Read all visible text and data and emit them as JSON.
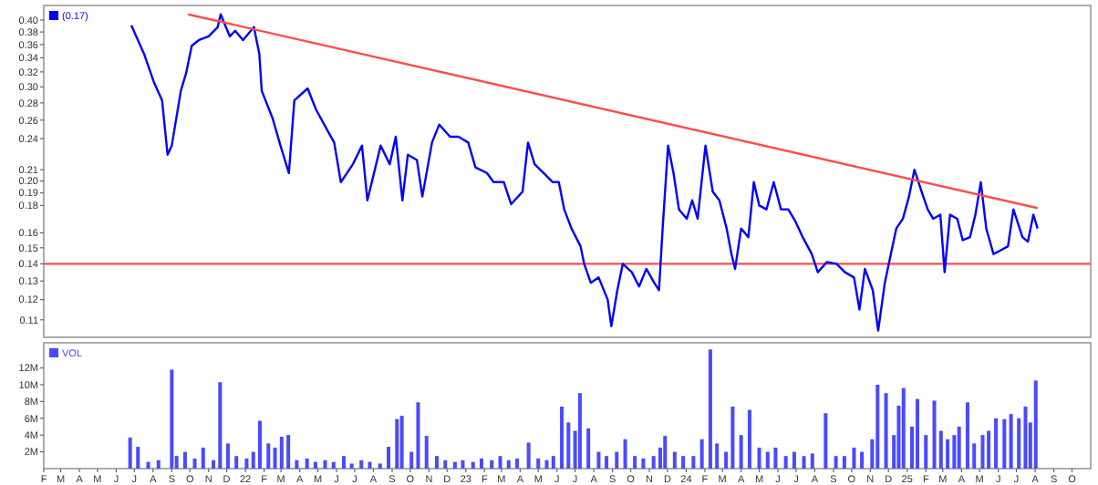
{
  "chart_data": [
    {
      "type": "line",
      "log": true,
      "legend": "top left",
      "tick_labels": "y",
      "xlim": [
        "2021-02-01",
        "2025-11-01"
      ],
      "ylim": [
        0.102,
        0.426
      ],
      "yticks": [
        {
          "value": 0.4,
          "label": "0.40"
        },
        0.38,
        0.36,
        0.34,
        0.32,
        {
          "value": 0.3,
          "label": "0.30"
        },
        0.28,
        0.26,
        0.24,
        0.21,
        {
          "value": 0.2,
          "label": "0.20"
        },
        0.19,
        0.18,
        0.16,
        0.15,
        0.14,
        0.13,
        0.12,
        0.11
      ],
      "x": [
        "2021-06-26",
        "2021-07-17",
        "2021-08-02",
        "2021-08-16",
        "2021-08-25",
        "2021-09-01",
        "2021-09-16",
        "2021-09-25",
        "2021-10-04",
        "2021-10-16",
        "2021-11-01",
        "2021-11-16",
        "2021-11-21",
        "2021-12-06",
        "2021-12-15",
        "2021-12-28",
        "2022-01-15",
        "2022-01-24",
        "2022-01-28",
        "2022-02-15",
        "2022-02-28",
        "2022-03-14",
        "2022-03-23",
        "2022-04-14",
        "2022-04-28",
        "2022-05-14",
        "2022-05-28",
        "2022-06-08",
        "2022-06-28",
        "2022-07-13",
        "2022-07-22",
        "2022-08-13",
        "2022-08-28",
        "2022-09-07",
        "2022-09-18",
        "2022-09-27",
        "2022-10-12",
        "2022-10-21",
        "2022-11-06",
        "2022-11-18",
        "2022-12-06",
        "2022-12-20",
        "2023-01-05",
        "2023-01-17",
        "2023-02-05",
        "2023-02-16",
        "2023-03-05",
        "2023-03-17",
        "2023-04-05",
        "2023-04-14",
        "2023-04-25",
        "2023-05-10",
        "2023-05-25",
        "2023-06-04",
        "2023-06-13",
        "2023-06-25",
        "2023-07-10",
        "2023-07-16",
        "2023-07-27",
        "2023-08-09",
        "2023-08-24",
        "2023-08-30",
        "2023-09-09",
        "2023-09-18",
        "2023-10-03",
        "2023-10-15",
        "2023-10-27",
        "2023-11-09",
        "2023-11-17",
        "2023-11-23",
        "2023-12-02",
        "2023-12-11",
        "2023-12-20",
        "2024-01-02",
        "2024-01-11",
        "2024-01-20",
        "2024-02-02",
        "2024-02-14",
        "2024-02-25",
        "2024-03-08",
        "2024-03-16",
        "2024-03-22",
        "2024-04-01",
        "2024-04-13",
        "2024-04-22",
        "2024-05-01",
        "2024-05-13",
        "2024-05-25",
        "2024-06-06",
        "2024-06-18",
        "2024-06-30",
        "2024-07-12",
        "2024-07-27",
        "2024-08-06",
        "2024-08-21",
        "2024-09-06",
        "2024-09-20",
        "2024-10-05",
        "2024-10-14",
        "2024-10-23",
        "2024-11-05",
        "2024-11-14",
        "2024-11-25",
        "2024-12-05",
        "2024-12-14",
        "2024-12-25",
        "2025-01-04",
        "2025-01-13",
        "2025-01-25",
        "2025-02-04",
        "2025-02-13",
        "2025-02-25",
        "2025-03-04",
        "2025-03-13",
        "2025-03-25",
        "2025-04-03",
        "2025-04-15",
        "2025-04-24",
        "2025-05-03",
        "2025-05-12",
        "2025-05-24",
        "2025-06-03",
        "2025-06-17",
        "2025-06-26",
        "2025-07-11",
        "2025-07-20",
        "2025-07-29",
        "2025-08-05"
      ],
      "series": [
        {
          "name": "(0.17)",
          "color": "#0000ff",
          "values": [
            0.391,
            0.346,
            0.307,
            0.283,
            0.224,
            0.233,
            0.295,
            0.319,
            0.358,
            0.367,
            0.373,
            0.388,
            0.41,
            0.373,
            0.382,
            0.367,
            0.388,
            0.346,
            0.295,
            0.262,
            0.233,
            0.207,
            0.283,
            0.298,
            0.272,
            0.252,
            0.236,
            0.199,
            0.215,
            0.233,
            0.184,
            0.233,
            0.215,
            0.242,
            0.184,
            0.224,
            0.219,
            0.187,
            0.236,
            0.255,
            0.242,
            0.242,
            0.236,
            0.212,
            0.207,
            0.199,
            0.199,
            0.181,
            0.191,
            0.236,
            0.215,
            0.207,
            0.199,
            0.199,
            0.177,
            0.163,
            0.151,
            0.14,
            0.129,
            0.132,
            0.12,
            0.107,
            0.125,
            0.14,
            0.135,
            0.127,
            0.137,
            0.129,
            0.125,
            0.163,
            0.233,
            0.207,
            0.177,
            0.17,
            0.184,
            0.17,
            0.233,
            0.191,
            0.184,
            0.163,
            0.146,
            0.137,
            0.163,
            0.157,
            0.199,
            0.18,
            0.177,
            0.199,
            0.177,
            0.177,
            0.168,
            0.157,
            0.146,
            0.135,
            0.141,
            0.14,
            0.135,
            0.132,
            0.115,
            0.137,
            0.125,
            0.105,
            0.129,
            0.146,
            0.163,
            0.17,
            0.187,
            0.21,
            0.191,
            0.177,
            0.17,
            0.173,
            0.135,
            0.173,
            0.17,
            0.155,
            0.157,
            0.173,
            0.199,
            0.163,
            0.146,
            0.148,
            0.151,
            0.177,
            0.157,
            0.154,
            0.173,
            0.163
          ]
        },
        {
          "type": "line",
          "color": "#ff4c4c",
          "x": [
            "2021-09-28",
            "2025-08-05"
          ],
          "values": [
            0.41,
            0.178
          ]
        }
      ],
      "ref_lines": [
        {
          "axis": "y",
          "value": 0.14,
          "color": "#ff4c4c"
        }
      ]
    },
    {
      "type": "bar",
      "legend": "top left",
      "xlim": [
        "2021-02-01",
        "2025-11-01"
      ],
      "ylim": [
        0,
        15
      ],
      "yticks": [
        {
          "value": 2,
          "label": "2M"
        },
        {
          "value": 4,
          "label": "4M"
        },
        {
          "value": 6,
          "label": "6M"
        },
        {
          "value": 8,
          "label": "8M"
        },
        {
          "value": 10,
          "label": "10M"
        },
        {
          "value": 12,
          "label": "12M"
        }
      ],
      "xticks": [
        {
          "value": "2021-02",
          "label": "F"
        },
        {
          "value": "2021-03",
          "label": "M"
        },
        {
          "value": "2021-04",
          "label": "A"
        },
        {
          "value": "2021-05",
          "label": "M"
        },
        {
          "value": "2021-06",
          "label": "J"
        },
        {
          "value": "2021-07",
          "label": "J"
        },
        {
          "value": "2021-08",
          "label": "A"
        },
        {
          "value": "2021-09",
          "label": "S"
        },
        {
          "value": "2021-10",
          "label": "O"
        },
        {
          "value": "2021-11",
          "label": "N"
        },
        {
          "value": "2021-12",
          "label": "D"
        },
        {
          "value": "2022-01",
          "label": "22"
        },
        {
          "value": "2022-02",
          "label": "F"
        },
        {
          "value": "2022-03",
          "label": "M"
        },
        {
          "value": "2022-04",
          "label": "A"
        },
        {
          "value": "2022-05",
          "label": "M"
        },
        {
          "value": "2022-06",
          "label": "J"
        },
        {
          "value": "2022-07",
          "label": "J"
        },
        {
          "value": "2022-08",
          "label": "A"
        },
        {
          "value": "2022-09",
          "label": "S"
        },
        {
          "value": "2022-10",
          "label": "O"
        },
        {
          "value": "2022-11",
          "label": "N"
        },
        {
          "value": "2022-12",
          "label": "D"
        },
        {
          "value": "2023-01",
          "label": "23"
        },
        {
          "value": "2023-02",
          "label": "F"
        },
        {
          "value": "2023-03",
          "label": "M"
        },
        {
          "value": "2023-04",
          "label": "A"
        },
        {
          "value": "2023-05",
          "label": "M"
        },
        {
          "value": "2023-06",
          "label": "J"
        },
        {
          "value": "2023-07",
          "label": "J"
        },
        {
          "value": "2023-08",
          "label": "A"
        },
        {
          "value": "2023-09",
          "label": "S"
        },
        {
          "value": "2023-10",
          "label": "O"
        },
        {
          "value": "2023-11",
          "label": "N"
        },
        {
          "value": "2023-12",
          "label": "D"
        },
        {
          "value": "2024-01",
          "label": "24"
        },
        {
          "value": "2024-02",
          "label": "F"
        },
        {
          "value": "2024-03",
          "label": "M"
        },
        {
          "value": "2024-04",
          "label": "A"
        },
        {
          "value": "2024-05",
          "label": "M"
        },
        {
          "value": "2024-06",
          "label": "J"
        },
        {
          "value": "2024-07",
          "label": "J"
        },
        {
          "value": "2024-08",
          "label": "A"
        },
        {
          "value": "2024-09",
          "label": "S"
        },
        {
          "value": "2024-10",
          "label": "O"
        },
        {
          "value": "2024-11",
          "label": "N"
        },
        {
          "value": "2024-12",
          "label": "D"
        },
        {
          "value": "2025-01",
          "label": "25"
        },
        {
          "value": "2025-02",
          "label": "F"
        },
        {
          "value": "2025-03",
          "label": "M"
        },
        {
          "value": "2025-04",
          "label": "A"
        },
        {
          "value": "2025-05",
          "label": "M"
        },
        {
          "value": "2025-06",
          "label": "J"
        },
        {
          "value": "2025-07",
          "label": "J"
        },
        {
          "value": "2025-08",
          "label": "A"
        },
        {
          "value": "2025-09",
          "label": "S"
        },
        {
          "value": "2025-10",
          "label": "O"
        }
      ],
      "x": [
        "2021-06-24",
        "2021-07-07",
        "2021-07-24",
        "2021-08-10",
        "2021-09-01",
        "2021-09-09",
        "2021-09-23",
        "2021-10-09",
        "2021-10-23",
        "2021-11-09",
        "2021-11-20",
        "2021-12-03",
        "2021-12-17",
        "2022-01-03",
        "2022-01-14",
        "2022-01-25",
        "2022-02-08",
        "2022-02-19",
        "2022-03-02",
        "2022-03-13",
        "2022-03-27",
        "2022-04-13",
        "2022-04-27",
        "2022-05-13",
        "2022-05-27",
        "2022-06-13",
        "2022-06-26",
        "2022-07-12",
        "2022-07-26",
        "2022-08-12",
        "2022-08-26",
        "2022-09-09",
        "2022-09-17",
        "2022-10-03",
        "2022-10-14",
        "2022-10-28",
        "2022-11-14",
        "2022-11-28",
        "2022-12-14",
        "2022-12-27",
        "2023-01-13",
        "2023-01-27",
        "2023-02-13",
        "2023-02-27",
        "2023-03-13",
        "2023-03-27",
        "2023-04-15",
        "2023-05-01",
        "2023-05-15",
        "2023-05-26",
        "2023-06-09",
        "2023-06-20",
        "2023-07-01",
        "2023-07-09",
        "2023-07-23",
        "2023-08-09",
        "2023-08-22",
        "2023-09-08",
        "2023-09-22",
        "2023-10-08",
        "2023-10-22",
        "2023-11-08",
        "2023-11-19",
        "2023-11-27",
        "2023-12-13",
        "2023-12-27",
        "2024-01-13",
        "2024-01-27",
        "2024-02-10",
        "2024-02-21",
        "2024-03-07",
        "2024-03-18",
        "2024-04-01",
        "2024-04-15",
        "2024-05-01",
        "2024-05-15",
        "2024-05-28",
        "2024-06-14",
        "2024-06-28",
        "2024-07-14",
        "2024-07-28",
        "2024-08-19",
        "2024-09-05",
        "2024-09-19",
        "2024-10-05",
        "2024-10-18",
        "2024-11-04",
        "2024-11-13",
        "2024-11-27",
        "2024-12-10",
        "2024-12-18",
        "2024-12-26",
        "2025-01-09",
        "2025-01-18",
        "2025-02-01",
        "2025-02-15",
        "2025-02-26",
        "2025-03-09",
        "2025-03-20",
        "2025-03-28",
        "2025-04-11",
        "2025-04-22",
        "2025-05-06",
        "2025-05-16",
        "2025-05-28",
        "2025-06-11",
        "2025-06-22",
        "2025-07-05",
        "2025-07-16",
        "2025-07-24",
        "2025-08-02"
      ],
      "series": [
        {
          "name": "VOL",
          "color": "#4a4aff",
          "values": [
            3.7,
            2.6,
            0.8,
            1.0,
            11.8,
            1.5,
            2.0,
            1.2,
            2.5,
            1.0,
            10.3,
            3.0,
            1.5,
            1.2,
            2.0,
            5.7,
            3.0,
            2.5,
            3.8,
            4.0,
            1.0,
            1.2,
            0.8,
            1.0,
            0.8,
            1.5,
            0.6,
            1.0,
            0.8,
            0.6,
            2.6,
            5.9,
            6.3,
            2.0,
            7.9,
            3.9,
            1.5,
            1.0,
            0.8,
            1.0,
            0.8,
            1.2,
            1.0,
            1.5,
            1.0,
            1.2,
            3.1,
            1.2,
            1.0,
            1.5,
            7.4,
            5.5,
            4.5,
            9.0,
            4.8,
            2.0,
            1.5,
            2.0,
            3.5,
            1.5,
            1.2,
            1.5,
            2.5,
            3.9,
            2.0,
            1.5,
            1.5,
            3.5,
            14.2,
            3.0,
            2.0,
            7.4,
            4.0,
            7.0,
            2.5,
            2.0,
            2.5,
            1.5,
            2.0,
            1.5,
            1.8,
            6.6,
            1.5,
            1.5,
            2.5,
            2.0,
            3.5,
            10.0,
            9.0,
            4.0,
            7.5,
            9.6,
            5.0,
            8.3,
            4.0,
            8.1,
            4.5,
            3.5,
            4.0,
            5.0,
            7.9,
            3.0,
            4.0,
            4.5,
            6.0,
            5.9,
            6.5,
            6.0,
            7.4,
            5.5,
            10.5
          ]
        }
      ]
    }
  ]
}
